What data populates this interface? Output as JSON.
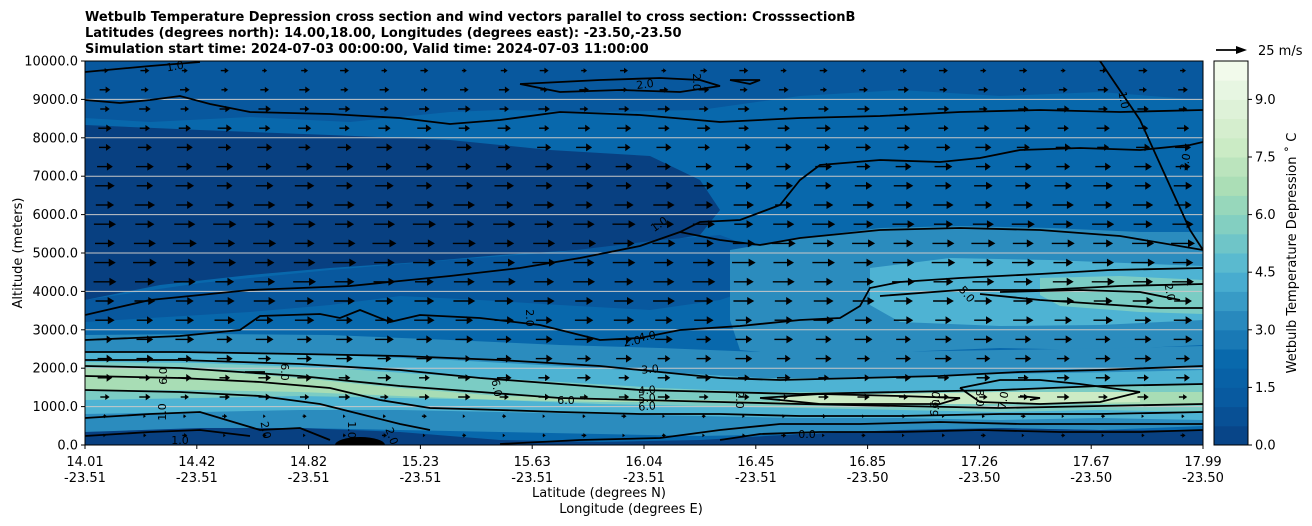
{
  "chart_data": {
    "type": "heatmap",
    "title_lines": [
      "Wetbulb Temperature Depression cross section and wind vectors parallel to cross section: CrosssectionB",
      "Latitudes (degrees north): 14.00,18.00, Longitudes (degrees east): -23.50,-23.50",
      "Simulation start time: 2024-07-03 00:00:00, Valid time: 2024-07-03 11:00:00"
    ],
    "xlabel_lat": "Latitude (degrees N)",
    "xlabel_lon": "Longitude (degrees E)",
    "ylabel": "Altitude (meters)",
    "ylim": [
      0,
      10000
    ],
    "y_ticks": [
      "0.0",
      "1000.0",
      "2000.0",
      "3000.0",
      "4000.0",
      "5000.0",
      "6000.0",
      "7000.0",
      "8000.0",
      "9000.0",
      "10000.0"
    ],
    "xlim": [
      14.01,
      17.99
    ],
    "x_ticks": [
      {
        "lat": "14.01",
        "lon": "-23.51"
      },
      {
        "lat": "14.42",
        "lon": "-23.51"
      },
      {
        "lat": "14.82",
        "lon": "-23.51"
      },
      {
        "lat": "15.23",
        "lon": "-23.51"
      },
      {
        "lat": "15.63",
        "lon": "-23.51"
      },
      {
        "lat": "16.04",
        "lon": "-23.51"
      },
      {
        "lat": "16.45",
        "lon": "-23.51"
      },
      {
        "lat": "16.85",
        "lon": "-23.50"
      },
      {
        "lat": "17.26",
        "lon": "-23.50"
      },
      {
        "lat": "17.67",
        "lon": "-23.50"
      },
      {
        "lat": "17.99",
        "lon": "-23.50"
      }
    ],
    "colorbar_label": "Wetbulb Temperature Depression $^\\circ$ C",
    "colorbar_label_display": "Wetbulb Temperature Depression ˚ C",
    "colorbar_range": [
      0,
      10
    ],
    "colorbar_ticks": [
      "0.0",
      "1.5",
      "3.0",
      "4.5",
      "6.0",
      "7.5",
      "9.0"
    ],
    "quiver_key_label": "25 m/s",
    "contour_labels": [
      "1.0",
      "2.0",
      "2.0",
      "1.0",
      "2.0",
      "1.0",
      "2.0",
      "2.0",
      "4.0",
      "5.0",
      "2.0",
      "3.0",
      "4.0",
      "5.0",
      "6.0",
      "6.0",
      "6.0",
      "6.0",
      "6.0",
      "2.0",
      "1.0",
      "0.0",
      "2.0",
      "1.0",
      "6.0",
      "6.0",
      "7.0",
      "8.0",
      "1.0",
      "2.0"
    ],
    "colors": {
      "low": "#084081",
      "mid": "#4eb3d3",
      "high": "#f7fcf0"
    }
  }
}
